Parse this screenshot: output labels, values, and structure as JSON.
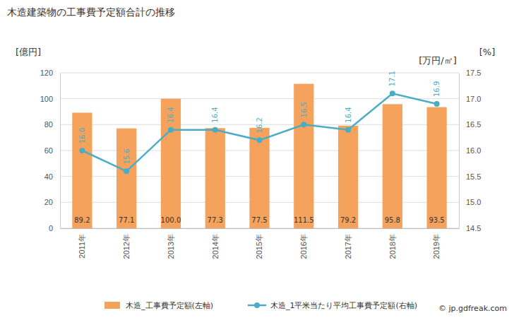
{
  "chart_data": {
    "type": "bar",
    "title": "木造建築物の工事費予定額合計の推移",
    "y_label": "[億円]",
    "y2_label": "[万円/㎡]",
    "annotations": [
      "[%]",
      "© jp.gdfreak.com"
    ],
    "categories": [
      "2011年",
      "2012年",
      "2013年",
      "2014年",
      "2015年",
      "2016年",
      "2017年",
      "2018年",
      "2019年"
    ],
    "series": [
      {
        "name": "木造_工事費予定額(左軸)",
        "type": "bar",
        "color": "#f5a35c",
        "values": [
          89.2,
          77.1,
          100.0,
          77.3,
          77.5,
          111.5,
          79.2,
          95.8,
          93.5
        ],
        "value_labels": [
          "89.2",
          "77.1",
          "100.0",
          "77.3",
          "77.5",
          "111.5",
          "79.2",
          "95.8",
          "93.5"
        ]
      },
      {
        "name": "木造_1平米当たり平均工事費予定額(右軸)",
        "type": "line",
        "axis": "y2",
        "color": "#4bacc6",
        "marker": "circle",
        "values": [
          16.0,
          15.6,
          16.4,
          16.4,
          16.2,
          16.5,
          16.4,
          17.1,
          16.9
        ],
        "value_labels": [
          "16.0",
          "15.6",
          "16.4",
          "16.4",
          "16.2",
          "16.5",
          "16.4",
          "17.1",
          "16.9"
        ]
      }
    ],
    "ylim": [
      0,
      120
    ],
    "yticks": [
      0,
      20,
      40,
      60,
      80,
      100,
      120
    ],
    "y2lim": [
      14.5,
      17.5
    ],
    "y2ticks": [
      {
        "value": 14.5,
        "label": "14.5"
      },
      {
        "value": 15,
        "label": "15.0"
      },
      {
        "value": 15.5,
        "label": "15.5"
      },
      {
        "value": 16,
        "label": "16.0"
      },
      {
        "value": 16.5,
        "label": "16.5"
      },
      {
        "value": 17,
        "label": "17.0"
      },
      {
        "value": 17.5,
        "label": "17.5"
      }
    ],
    "grid": true,
    "data_labels": true,
    "legend": "bottom"
  }
}
